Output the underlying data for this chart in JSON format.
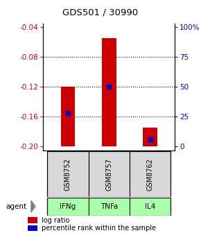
{
  "title": "GDS501 / 30990",
  "samples": [
    "GSM8752",
    "GSM8757",
    "GSM8762"
  ],
  "agents": [
    "IFNg",
    "TNFa",
    "IL4"
  ],
  "log_ratio_values": [
    -0.12,
    -0.055,
    -0.175
  ],
  "log_ratio_base": -0.2,
  "percentile_values": [
    -0.155,
    -0.12,
    -0.19
  ],
  "ylim_left": [
    -0.205,
    -0.035
  ],
  "left_yticks": [
    -0.2,
    -0.16,
    -0.12,
    -0.08,
    -0.04
  ],
  "right_yticks_pct": [
    0,
    25,
    50,
    75,
    100
  ],
  "right_yticks_val": [
    -0.2,
    -0.16,
    -0.12,
    -0.08,
    -0.04
  ],
  "bar_color": "#cc0000",
  "percentile_color": "#0000cc",
  "sample_bg_color": "#d8d8d8",
  "agent_color": "#aaffaa",
  "title_color": "#000000",
  "left_tick_color": "#cc0000",
  "right_tick_color": "#0000cc",
  "bar_width": 0.35,
  "grid_yticks": [
    -0.08,
    -0.12,
    -0.16
  ]
}
